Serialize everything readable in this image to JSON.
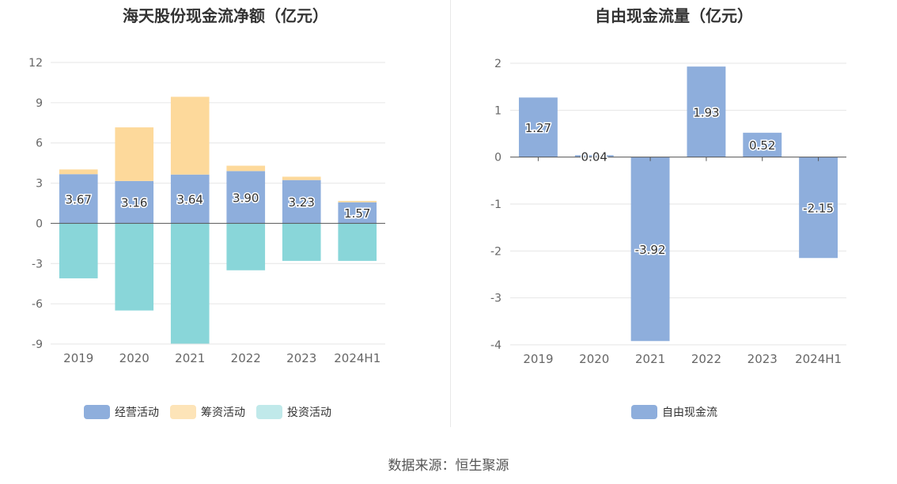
{
  "source": "数据来源：恒生聚源",
  "chart_data": [
    {
      "type": "bar",
      "stacked": true,
      "title": "海天股份现金流净额（亿元）",
      "categories": [
        "2019",
        "2020",
        "2021",
        "2022",
        "2023",
        "2024H1"
      ],
      "ylim": [
        -9,
        12
      ],
      "yticks": [
        12,
        9,
        6,
        3,
        0,
        -3,
        -6,
        -9
      ],
      "grid": true,
      "legend_position": "bottom",
      "series": [
        {
          "name": "经营活动",
          "color": "#8eaedc",
          "values": [
            3.67,
            3.16,
            3.64,
            3.9,
            3.23,
            1.57
          ],
          "labels": [
            "3.67",
            "3.16",
            "3.64",
            "3.90",
            "3.23",
            "1.57"
          ]
        },
        {
          "name": "筹资活动",
          "color": "#fdd99b",
          "values": [
            0.35,
            4.0,
            5.8,
            0.4,
            0.25,
            0.1
          ]
        },
        {
          "name": "投资活动",
          "color": "#89d6d9",
          "values": [
            -4.1,
            -6.5,
            -9.0,
            -3.5,
            -2.8,
            -2.8
          ]
        }
      ]
    },
    {
      "type": "bar",
      "title": "自由现金流量（亿元）",
      "categories": [
        "2019",
        "2020",
        "2021",
        "2022",
        "2023",
        "2024H1"
      ],
      "ylim": [
        -4,
        2
      ],
      "yticks": [
        2,
        1,
        0,
        -1,
        -2,
        -3,
        -4
      ],
      "grid": true,
      "legend_position": "bottom",
      "series": [
        {
          "name": "自由现金流",
          "color": "#8eaedc",
          "values": [
            1.27,
            0.04,
            -3.92,
            1.93,
            0.52,
            -2.15
          ],
          "labels": [
            "1.27",
            "0.04",
            "-3.92",
            "1.93",
            "0.52",
            "-2.15"
          ]
        }
      ]
    }
  ]
}
